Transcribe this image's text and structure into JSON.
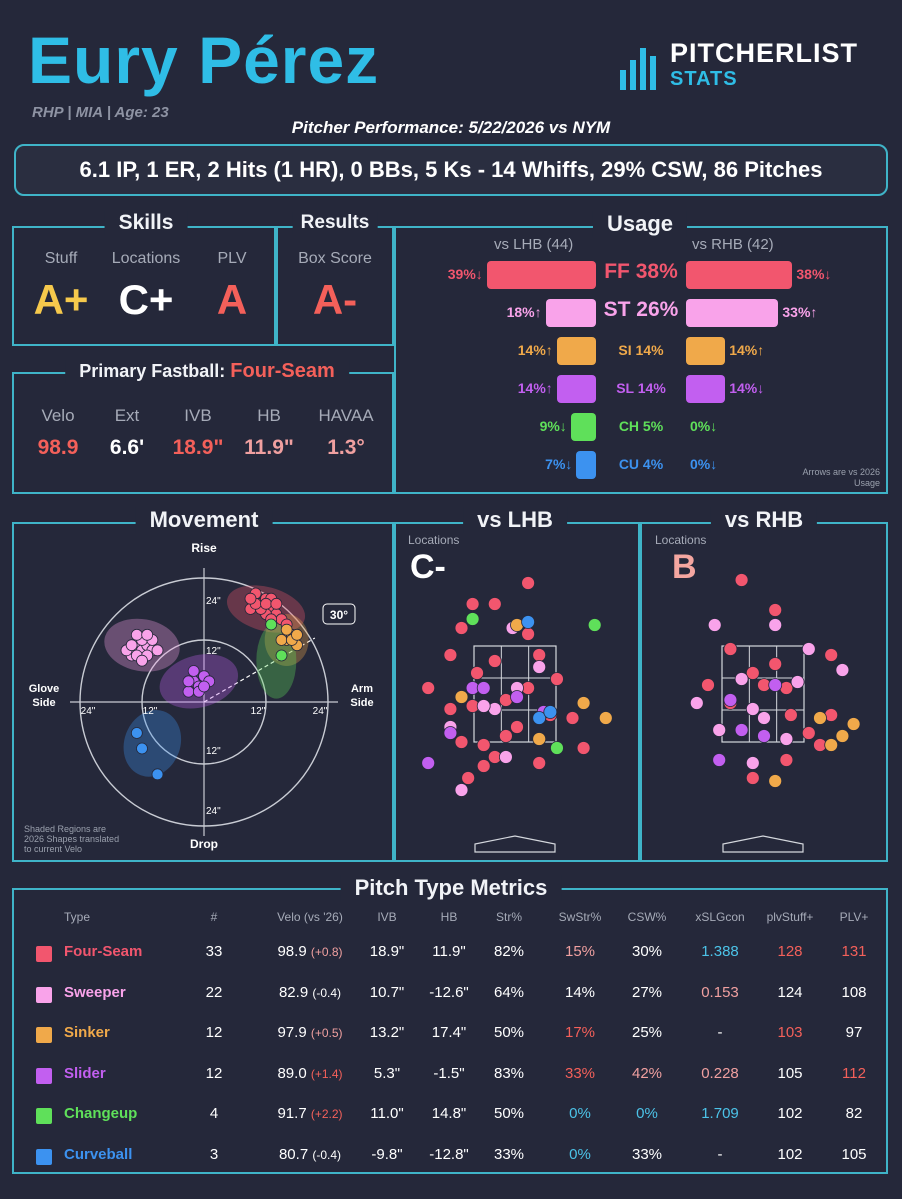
{
  "header": {
    "name": "Eury Pérez",
    "meta": "RHP | MIA | Age: 23",
    "brand_top": "PITCHERLIST",
    "brand_bottom": "STATS",
    "performance": "Pitcher Performance: 5/22/2026 vs NYM",
    "statline": "6.1 IP, 1 ER, 2 Hits (1 HR), 0 BBs, 5 Ks - 14 Whiffs, 29% CSW, 86 Pitches"
  },
  "skills": {
    "title": "Skills",
    "items": [
      {
        "label": "Stuff",
        "grade": "A+",
        "color": "#f6c94c"
      },
      {
        "label": "Locations",
        "grade": "C+",
        "color": "#ffffff"
      },
      {
        "label": "PLV",
        "grade": "A",
        "color": "#f4605a"
      }
    ]
  },
  "results": {
    "title": "Results",
    "label": "Box Score",
    "grade": "A-",
    "color": "#f4605a"
  },
  "fastball": {
    "title": "Primary Fastball:",
    "pitch": "Four-Seam",
    "stats": [
      {
        "label": "Velo",
        "value": "98.9",
        "color": "#f4605a"
      },
      {
        "label": "Ext",
        "value": "6.6'",
        "color": "#ffffff"
      },
      {
        "label": "IVB",
        "value": "18.9\"",
        "color": "#f4605a"
      },
      {
        "label": "HB",
        "value": "11.9\"",
        "color": "#f0a0a0"
      },
      {
        "label": "HAVAA",
        "value": "1.3°",
        "color": "#f0a0a0"
      }
    ]
  },
  "usage": {
    "title": "Usage",
    "lhb_label": "vs LHB (44)",
    "rhb_label": "vs RHB (42)",
    "note": "Arrows are vs 2026 Usage",
    "rows": [
      {
        "pitch": "FF 38%",
        "color": "#f2566e",
        "lhb": 39,
        "lhb_text": "39%↓",
        "rhb": 38,
        "rhb_text": "38%↓"
      },
      {
        "pitch": "ST 26%",
        "color": "#f9a3ea",
        "lhb": 18,
        "lhb_text": "18%↑",
        "rhb": 33,
        "rhb_text": "33%↑"
      },
      {
        "pitch": "SI 14%",
        "color": "#f0a94a",
        "lhb": 14,
        "lhb_text": "14%↑",
        "rhb": 14,
        "rhb_text": "14%↑"
      },
      {
        "pitch": "SL 14%",
        "color": "#c25ff0",
        "lhb": 14,
        "lhb_text": "14%↑",
        "rhb": 14,
        "rhb_text": "14%↓"
      },
      {
        "pitch": "CH 5%",
        "color": "#5fe05a",
        "lhb": 9,
        "lhb_text": "9%↓",
        "rhb": 0,
        "rhb_text": "0%↓"
      },
      {
        "pitch": "CU 4%",
        "color": "#3c92f0",
        "lhb": 7,
        "lhb_text": "7%↓",
        "rhb": 0,
        "rhb_text": "0%↓"
      }
    ]
  },
  "movement": {
    "title": "Movement",
    "rise": "Rise",
    "drop": "Drop",
    "glove": "Glove Side",
    "arm": "Arm Side",
    "ring_24": "24\"",
    "ring_12": "12\"",
    "angle": "30°",
    "note": "Shaded Regions are 2026 Shapes translated to current Velo"
  },
  "locations": {
    "lhb_title": "vs LHB",
    "rhb_title": "vs RHB",
    "label": "Locations",
    "lhb_grade": "C-",
    "rhb_grade": "B"
  },
  "metrics": {
    "title": "Pitch Type Metrics",
    "headers": [
      "Type",
      "#",
      "Velo (vs '26)",
      "IVB",
      "HB",
      "Str%",
      "SwStr%",
      "CSW%",
      "xSLGcon",
      "plvStuff+",
      "PLV+"
    ],
    "rows": [
      {
        "name": "Four-Seam",
        "color": "#f2566e",
        "n": "33",
        "velo": "98.9",
        "delta": "(+0.8)",
        "ivb": "18.9\"",
        "hb": "11.9\"",
        "str": "82%",
        "swstr": "15%",
        "csw": "30%",
        "xslg": "1.388",
        "stuff": "128",
        "plv": "131"
      },
      {
        "name": "Sweeper",
        "color": "#f9a3ea",
        "n": "22",
        "velo": "82.9",
        "delta": "(-0.4)",
        "ivb": "10.7\"",
        "hb": "-12.6\"",
        "str": "64%",
        "swstr": "14%",
        "csw": "27%",
        "xslg": "0.153",
        "stuff": "124",
        "plv": "108"
      },
      {
        "name": "Sinker",
        "color": "#f0a94a",
        "n": "12",
        "velo": "97.9",
        "delta": "(+0.5)",
        "ivb": "13.2\"",
        "hb": "17.4\"",
        "str": "50%",
        "swstr": "17%",
        "csw": "25%",
        "xslg": "-",
        "stuff": "103",
        "plv": "97"
      },
      {
        "name": "Slider",
        "color": "#c25ff0",
        "n": "12",
        "velo": "89.0",
        "delta": "(+1.4)",
        "ivb": "5.3\"",
        "hb": "-1.5\"",
        "str": "83%",
        "swstr": "33%",
        "csw": "42%",
        "xslg": "0.228",
        "stuff": "105",
        "plv": "112"
      },
      {
        "name": "Changeup",
        "color": "#5fe05a",
        "n": "4",
        "velo": "91.7",
        "delta": "(+2.2)",
        "ivb": "11.0\"",
        "hb": "14.8\"",
        "str": "50%",
        "swstr": "0%",
        "csw": "0%",
        "xslg": "1.709",
        "stuff": "102",
        "plv": "82"
      },
      {
        "name": "Curveball",
        "color": "#3c92f0",
        "n": "3",
        "velo": "80.7",
        "delta": "(-0.4)",
        "ivb": "-9.8\"",
        "hb": "-12.8\"",
        "str": "33%",
        "swstr": "0%",
        "csw": "33%",
        "xslg": "-",
        "stuff": "102",
        "plv": "105"
      }
    ]
  },
  "chart_data": [
    {
      "type": "scatter",
      "title": "Movement",
      "xlabel": "",
      "ylabel": "",
      "xlim": [
        -30,
        30
      ],
      "ylim": [
        -30,
        30
      ],
      "series": [
        {
          "name": "Four-Seam",
          "points": [
            [
              9,
              18
            ],
            [
              11,
              19
            ],
            [
              12,
              20
            ],
            [
              10,
              21
            ],
            [
              13,
              18
            ],
            [
              14,
              17
            ],
            [
              12,
              17
            ],
            [
              15,
              16
            ],
            [
              11,
              18
            ],
            [
              10,
              19
            ],
            [
              13,
              20
            ],
            [
              9,
              20
            ],
            [
              12,
              19
            ],
            [
              14,
              19
            ],
            [
              16,
              15
            ],
            [
              13,
              16
            ]
          ]
        },
        {
          "name": "Sweeper",
          "points": [
            [
              -13,
              11
            ],
            [
              -12,
              10
            ],
            [
              -14,
              9
            ],
            [
              -11,
              11
            ],
            [
              -10,
              10
            ],
            [
              -13,
              9
            ],
            [
              -12,
              12
            ],
            [
              -15,
              10
            ],
            [
              -11,
              9
            ],
            [
              -9,
              10
            ],
            [
              -14,
              11
            ],
            [
              -10,
              12
            ],
            [
              -12,
              8
            ],
            [
              -13,
              13
            ],
            [
              -11,
              13
            ]
          ]
        },
        {
          "name": "Sinker",
          "points": [
            [
              16,
              12
            ],
            [
              17,
              13
            ],
            [
              15,
              12
            ],
            [
              18,
              11
            ],
            [
              17,
              12
            ],
            [
              16,
              14
            ],
            [
              18,
              13
            ]
          ]
        },
        {
          "name": "Slider",
          "points": [
            [
              -2,
              4
            ],
            [
              -1,
              3
            ],
            [
              -3,
              2
            ],
            [
              0,
              5
            ],
            [
              -2,
              6
            ],
            [
              -1,
              2
            ],
            [
              1,
              4
            ],
            [
              -3,
              4
            ],
            [
              0,
              3
            ]
          ]
        },
        {
          "name": "Changeup",
          "points": [
            [
              13,
              15
            ],
            [
              15,
              9
            ]
          ]
        },
        {
          "name": "Curveball",
          "points": [
            [
              -13,
              -6
            ],
            [
              -12,
              -9
            ],
            [
              -9,
              -14
            ]
          ]
        }
      ]
    },
    {
      "type": "scatter",
      "title": "vs LHB",
      "series": [
        {
          "name": "Four-Seam",
          "points": [
            [
              0.1,
              0.52
            ],
            [
              0.2,
              0.45
            ],
            [
              0.25,
              0.34
            ],
            [
              0.3,
              0.46
            ],
            [
              0.35,
              0.33
            ],
            [
              0.35,
              0.26
            ],
            [
              0.28,
              0.22
            ],
            [
              0.4,
              0.29
            ],
            [
              0.45,
              0.36
            ],
            [
              0.5,
              0.39
            ],
            [
              0.55,
              0.52
            ],
            [
              0.6,
              0.27
            ],
            [
              0.65,
              0.43
            ],
            [
              0.55,
              0.7
            ],
            [
              0.3,
              0.8
            ],
            [
              0.2,
              0.63
            ],
            [
              0.8,
              0.32
            ],
            [
              0.75,
              0.42
            ],
            [
              0.4,
              0.61
            ],
            [
              0.55,
              0.87
            ],
            [
              0.45,
              0.48
            ],
            [
              0.68,
              0.55
            ],
            [
              0.32,
              0.57
            ],
            [
              0.25,
              0.72
            ],
            [
              0.4,
              0.8
            ],
            [
              0.6,
              0.63
            ]
          ]
        },
        {
          "name": "Sweeper",
          "points": [
            [
              0.2,
              0.39
            ],
            [
              0.4,
              0.45
            ],
            [
              0.45,
              0.29
            ],
            [
              0.6,
              0.59
            ],
            [
              0.35,
              0.46
            ],
            [
              0.25,
              0.18
            ],
            [
              0.5,
              0.52
            ],
            [
              0.48,
              0.72
            ]
          ]
        },
        {
          "name": "Sinker",
          "points": [
            [
              0.8,
              0.47
            ],
            [
              0.9,
              0.42
            ],
            [
              0.5,
              0.73
            ],
            [
              0.25,
              0.49
            ],
            [
              0.6,
              0.35
            ]
          ]
        },
        {
          "name": "Slider",
          "points": [
            [
              0.1,
              0.27
            ],
            [
              0.3,
              0.52
            ],
            [
              0.35,
              0.52
            ],
            [
              0.5,
              0.49
            ],
            [
              0.62,
              0.44
            ],
            [
              0.2,
              0.37
            ]
          ]
        },
        {
          "name": "Changeup",
          "points": [
            [
              0.68,
              0.32
            ],
            [
              0.85,
              0.73
            ],
            [
              0.3,
              0.75
            ]
          ]
        },
        {
          "name": "Curveball",
          "points": [
            [
              0.55,
              0.74
            ],
            [
              0.6,
              0.42
            ],
            [
              0.65,
              0.44
            ]
          ]
        }
      ]
    },
    {
      "type": "scatter",
      "title": "vs RHB",
      "series": [
        {
          "name": "Four-Seam",
          "points": [
            [
              0.4,
              0.88
            ],
            [
              0.35,
              0.47
            ],
            [
              0.45,
              0.57
            ],
            [
              0.5,
              0.53
            ],
            [
              0.55,
              0.6
            ],
            [
              0.6,
              0.52
            ],
            [
              0.62,
              0.43
            ],
            [
              0.7,
              0.37
            ],
            [
              0.8,
              0.63
            ],
            [
              0.8,
              0.43
            ],
            [
              0.75,
              0.33
            ],
            [
              0.6,
              0.28
            ],
            [
              0.45,
              0.22
            ],
            [
              0.35,
              0.65
            ],
            [
              0.25,
              0.53
            ],
            [
              0.55,
              0.78
            ]
          ]
        },
        {
          "name": "Sweeper",
          "points": [
            [
              0.7,
              0.65
            ],
            [
              0.55,
              0.73
            ],
            [
              0.6,
              0.35
            ],
            [
              0.5,
              0.42
            ],
            [
              0.45,
              0.45
            ],
            [
              0.3,
              0.38
            ],
            [
              0.2,
              0.47
            ],
            [
              0.65,
              0.54
            ],
            [
              0.4,
              0.55
            ],
            [
              0.28,
              0.73
            ],
            [
              0.45,
              0.27
            ],
            [
              0.85,
              0.58
            ]
          ]
        },
        {
          "name": "Sinker",
          "points": [
            [
              0.85,
              0.36
            ],
            [
              0.9,
              0.4
            ],
            [
              0.8,
              0.33
            ],
            [
              0.55,
              0.21
            ],
            [
              0.75,
              0.42
            ]
          ]
        },
        {
          "name": "Slider",
          "points": [
            [
              0.5,
              0.36
            ],
            [
              0.55,
              0.53
            ],
            [
              0.4,
              0.38
            ],
            [
              0.35,
              0.48
            ],
            [
              0.3,
              0.28
            ]
          ]
        }
      ]
    },
    {
      "type": "bar",
      "title": "Usage",
      "categories": [
        "FF",
        "ST",
        "SI",
        "SL",
        "CH",
        "CU"
      ],
      "series": [
        {
          "name": "vs LHB (44)",
          "values": [
            39,
            18,
            14,
            14,
            9,
            7
          ]
        },
        {
          "name": "vs RHB (42)",
          "values": [
            38,
            33,
            14,
            14,
            0,
            0
          ]
        }
      ]
    }
  ]
}
